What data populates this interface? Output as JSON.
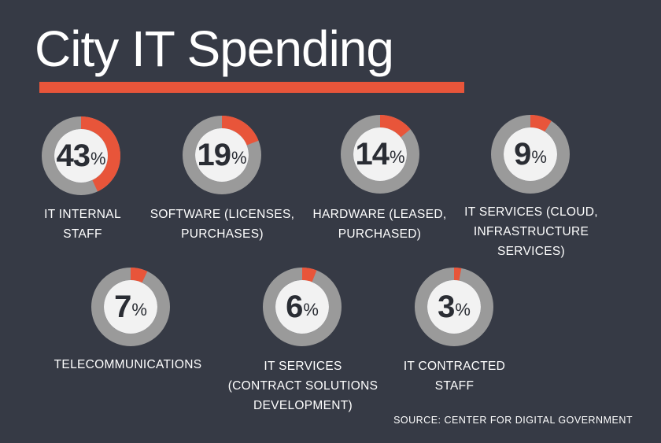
{
  "title": "City IT Spending",
  "source": "SOURCE: CENTER FOR DIGITAL GOVERNMENT",
  "colors": {
    "background": "#363a45",
    "accent": "#e8553a",
    "ring_base": "#9a9a9a",
    "inner": "#f2f2f2"
  },
  "chart_data": {
    "type": "pie",
    "title": "City IT Spending",
    "unit": "%",
    "series": [
      {
        "name": "IT INTERNAL STAFF",
        "label": "IT INTERNAL\nSTAFF",
        "value": 43
      },
      {
        "name": "SOFTWARE (LICENSES, PURCHASES)",
        "label": "SOFTWARE (LICENSES,\nPURCHASES)",
        "value": 19
      },
      {
        "name": "HARDWARE (LEASED, PURCHASED)",
        "label": "HARDWARE (LEASED,\nPURCHASED)",
        "value": 14
      },
      {
        "name": "IT SERVICES (CLOUD, INFRASTRUCTURE SERVICES)",
        "label": "IT SERVICES (CLOUD,\nINFRASTRUCTURE\nSERVICES)",
        "value": 9
      },
      {
        "name": "TELECOMMUNICATIONS",
        "label": "TELECOMMUNICATIONS",
        "value": 7
      },
      {
        "name": "IT SERVICES (CONTRACT SOLUTIONS DEVELOPMENT)",
        "label": "IT SERVICES\n(CONTRACT SOLUTIONS\nDEVELOPMENT)",
        "value": 6
      },
      {
        "name": "IT CONTRACTED STAFF",
        "label": "IT CONTRACTED\nSTAFF",
        "value": 3
      }
    ]
  }
}
